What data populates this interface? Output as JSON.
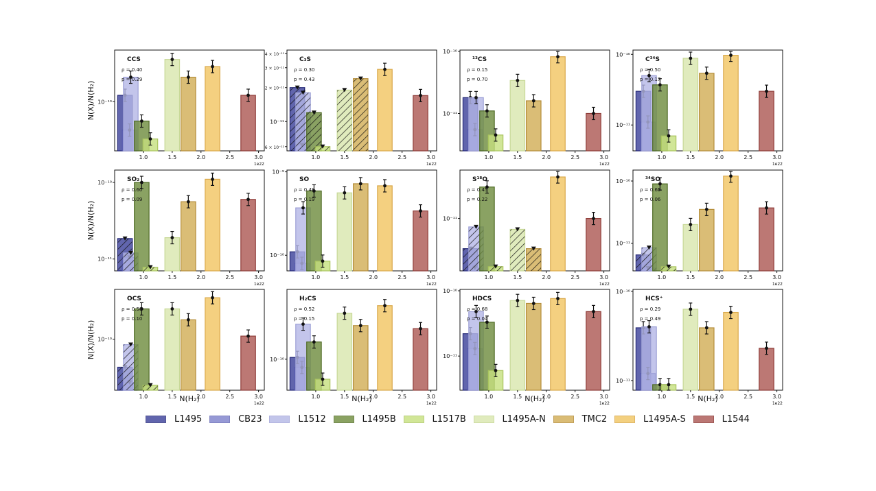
{
  "figure": {
    "ylabel_text": "N(X)/N(H₂)",
    "xlabel_text": "N(H₂)",
    "offset_text": "1e22",
    "x_ticks": [
      "1.0",
      "1.5",
      "2.0",
      "2.5",
      "3.0"
    ]
  },
  "chart_data": {
    "type": "bar",
    "bar_x_positions": [
      0.68,
      0.76,
      0.78,
      0.97,
      1.12,
      1.5,
      1.78,
      2.2,
      2.82
    ],
    "legend": [
      {
        "name": "L1495",
        "fill": "#3a3f99",
        "edge": "#262a78",
        "alpha": 0.8
      },
      {
        "name": "CB23",
        "fill": "#7478c8",
        "edge": "#5458aa",
        "alpha": 0.75
      },
      {
        "name": "L1512",
        "fill": "#b4b7e6",
        "edge": "#9ea1d6",
        "alpha": 0.8
      },
      {
        "name": "L1495B",
        "fill": "#6d8b3c",
        "edge": "#4e6a24",
        "alpha": 0.8
      },
      {
        "name": "L1517B",
        "fill": "#c6e07e",
        "edge": "#a9c45e",
        "alpha": 0.8
      },
      {
        "name": "L1495A-N",
        "fill": "#dde9b6",
        "edge": "#c7d897",
        "alpha": 0.9
      },
      {
        "name": "TMC2",
        "fill": "#d4b15e",
        "edge": "#b48d3a",
        "alpha": 0.85
      },
      {
        "name": "L1495A-S",
        "fill": "#f2c86a",
        "edge": "#d9a84a",
        "alpha": 0.85
      },
      {
        "name": "L1544",
        "fill": "#b0605c",
        "edge": "#8e3c38",
        "alpha": 0.85
      }
    ],
    "panels": [
      {
        "molecule": "CCS",
        "rho": "ρ = 0.40",
        "p": "p = 0.29",
        "ylim": [
          2.5e-11,
          4.3e-10
        ],
        "yticks": [
          {
            "v": 1e-10,
            "label": "10⁻¹⁰"
          }
        ],
        "values": [
          1.2e-10,
          4.5e-11,
          2e-10,
          5.8e-11,
          3.5e-11,
          3.3e-10,
          2e-10,
          2.7e-10,
          1.2e-10
        ],
        "upper_limits": [
          false,
          false,
          false,
          false,
          false,
          false,
          false,
          false,
          false
        ]
      },
      {
        "molecule": "C₃S",
        "rho": "ρ = 0.30",
        "p": "p = 0.43",
        "ylim": [
          5.5e-12,
          4.3e-11
        ],
        "yticks": [
          {
            "v": 6e-12,
            "label": "6 × 10⁻¹²"
          },
          {
            "v": 1e-11,
            "label": "10⁻¹¹"
          },
          {
            "v": 2e-11,
            "label": "2 × 10⁻¹¹"
          },
          {
            "v": 3e-11,
            "label": "3 × 10⁻¹¹"
          },
          {
            "v": 4e-11,
            "label": "4 × 10⁻¹¹"
          }
        ],
        "values": [
          2e-11,
          6.2e-12,
          1.8e-11,
          1.2e-11,
          6e-12,
          1.9e-11,
          2.4e-11,
          2.9e-11,
          1.7e-11
        ],
        "upper_limits": [
          true,
          true,
          true,
          true,
          true,
          true,
          true,
          false,
          false
        ]
      },
      {
        "molecule": "¹³CS",
        "rho": "ρ = 0.15",
        "p": "p = 0.70",
        "ylim": [
          2.5e-12,
          1.05e-10
        ],
        "yticks": [
          {
            "v": 1e-11,
            "label": "10⁻¹¹"
          },
          {
            "v": 1e-10,
            "label": "10⁻¹⁰"
          }
        ],
        "values": [
          1.8e-11,
          5.5e-12,
          1.8e-11,
          1.1e-11,
          4.5e-12,
          3.4e-11,
          1.6e-11,
          8.2e-11,
          1e-11
        ],
        "upper_limits": [
          false,
          false,
          false,
          false,
          false,
          false,
          false,
          false,
          false
        ]
      },
      {
        "molecule": "C³⁴S",
        "rho": "ρ = 0.50",
        "p": "p = 0.17",
        "ylim": [
          4.3e-12,
          1.15e-10
        ],
        "yticks": [
          {
            "v": 1e-11,
            "label": "10⁻¹¹"
          },
          {
            "v": 1e-10,
            "label": "10⁻¹⁰"
          }
        ],
        "values": [
          3e-11,
          1.1e-11,
          5e-11,
          3.7e-11,
          7e-12,
          8.8e-11,
          5.4e-11,
          9.7e-11,
          3e-11
        ],
        "upper_limits": [
          false,
          false,
          false,
          false,
          false,
          false,
          false,
          false,
          false
        ]
      },
      {
        "molecule": "SO₂",
        "rho": "ρ = 0.60",
        "p": "p = 0.09",
        "ylim": [
          7e-12,
          1.45e-10
        ],
        "yticks": [
          {
            "v": 1e-11,
            "label": "10⁻¹¹"
          },
          {
            "v": 1e-10,
            "label": "10⁻¹⁰"
          }
        ],
        "values": [
          1.85e-11,
          1.05e-11,
          1.2e-11,
          1e-10,
          7.8e-12,
          1.9e-11,
          5.6e-11,
          1.1e-10,
          6e-11
        ],
        "upper_limits": [
          true,
          true,
          true,
          false,
          true,
          false,
          false,
          false,
          false
        ]
      },
      {
        "molecule": "SO",
        "rho": "ρ = 0.48",
        "p": "p = 0.19",
        "ylim": [
          6.5e-11,
          1.05e-09
        ],
        "yticks": [
          {
            "v": 1e-10,
            "label": "10⁻¹⁰"
          },
          {
            "v": 1e-09,
            "label": "10⁻⁹"
          }
        ],
        "values": [
          1.1e-10,
          8e-11,
          3.7e-10,
          5.9e-10,
          8.5e-11,
          5.6e-10,
          7.2e-10,
          6.8e-10,
          3.4e-10
        ],
        "upper_limits": [
          false,
          false,
          false,
          false,
          false,
          false,
          false,
          false,
          false
        ]
      },
      {
        "molecule": "S¹⁸O",
        "rho": "ρ = 0.45",
        "p": "p = 0.22",
        "ylim": [
          2.5e-12,
          3.6e-11
        ],
        "yticks": [
          {
            "v": 1e-11,
            "label": "10⁻¹¹"
          }
        ],
        "values": [
          4.5e-12,
          2.7e-12,
          8e-12,
          2.3e-11,
          2.8e-12,
          7.5e-12,
          4.5e-12,
          3e-11,
          1e-11
        ],
        "upper_limits": [
          true,
          true,
          true,
          false,
          true,
          true,
          true,
          false,
          false
        ]
      },
      {
        "molecule": "³⁴SO",
        "rho": "ρ = 0.65",
        "p": "p = 0.06",
        "ylim": [
          3.6e-12,
          1.5e-10
        ],
        "yticks": [
          {
            "v": 1e-11,
            "label": "10⁻¹¹"
          },
          {
            "v": 1e-10,
            "label": "10⁻¹⁰"
          }
        ],
        "values": [
          6.5e-12,
          4e-12,
          8.5e-12,
          9e-11,
          4.2e-12,
          2e-11,
          3.5e-11,
          1.2e-10,
          3.7e-11
        ],
        "upper_limits": [
          true,
          true,
          true,
          false,
          true,
          false,
          false,
          false,
          false
        ]
      },
      {
        "molecule": "OCS",
        "rho": "ρ = 0.58",
        "p": "p = 0.10",
        "ylim": [
          2.15e-11,
          4.5e-10
        ],
        "yticks": [
          {
            "v": 1e-10,
            "label": "10⁻¹⁰"
          }
        ],
        "values": [
          4.3e-11,
          2.7e-11,
          8.5e-11,
          2.5e-10,
          2.5e-11,
          2.5e-10,
          1.8e-10,
          3.5e-10,
          1.1e-10
        ],
        "upper_limits": [
          true,
          true,
          true,
          false,
          true,
          false,
          false,
          false,
          false
        ]
      },
      {
        "molecule": "H₂CS",
        "rho": "ρ = 0.52",
        "p": "p = 0.15",
        "ylim": [
          4.3e-11,
          6.7e-10
        ],
        "yticks": [
          {
            "v": 1e-10,
            "label": "10⁻¹⁰"
          }
        ],
        "values": [
          1.05e-10,
          8e-11,
          2.6e-10,
          1.6e-10,
          5.8e-11,
          3.5e-10,
          2.5e-10,
          4.3e-10,
          2.3e-10
        ],
        "upper_limits": [
          false,
          false,
          false,
          false,
          false,
          false,
          false,
          false,
          false
        ]
      },
      {
        "molecule": "HDCS",
        "rho": "ρ = 0.68",
        "p": "p = 0.04",
        "ylim": [
          3e-12,
          1.05e-10
        ],
        "yticks": [
          {
            "v": 1e-11,
            "label": "10⁻¹¹"
          },
          {
            "v": 1e-10,
            "label": "10⁻¹⁰"
          }
        ],
        "values": [
          2.2e-11,
          1.3e-11,
          4.8e-11,
          3.3e-11,
          6e-12,
          7.1e-11,
          6.4e-11,
          7.6e-11,
          4.8e-11
        ],
        "upper_limits": [
          false,
          false,
          false,
          false,
          false,
          false,
          false,
          false,
          false
        ]
      },
      {
        "molecule": "HCS⁺",
        "rho": "ρ = 0.29",
        "p": "p = 0.49",
        "ylim": [
          7.8e-12,
          1.05e-10
        ],
        "yticks": [
          {
            "v": 1e-11,
            "label": "10⁻¹¹"
          },
          {
            "v": 1e-10,
            "label": "10⁻¹⁰"
          }
        ],
        "values": [
          3.9e-11,
          1.2e-11,
          4e-11,
          9e-12,
          9e-12,
          6.3e-11,
          3.9e-11,
          5.8e-11,
          2.3e-11
        ],
        "upper_limits": [
          false,
          false,
          false,
          false,
          false,
          false,
          false,
          false,
          false
        ]
      }
    ]
  }
}
